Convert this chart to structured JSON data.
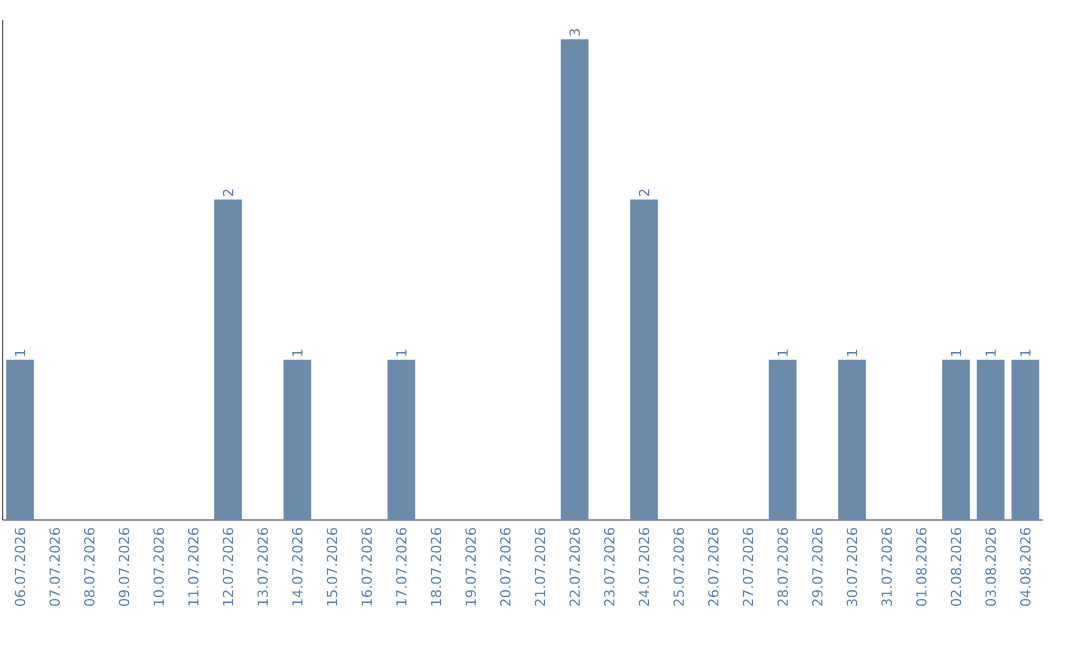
{
  "chart_data": {
    "type": "bar",
    "categories": [
      "06.07.2026",
      "07.07.2026",
      "08.07.2026",
      "09.07.2026",
      "10.07.2026",
      "11.07.2026",
      "12.07.2026",
      "13.07.2026",
      "14.07.2026",
      "15.07.2026",
      "16.07.2026",
      "17.07.2026",
      "18.07.2026",
      "19.07.2026",
      "20.07.2026",
      "21.07.2026",
      "22.07.2026",
      "23.07.2026",
      "24.07.2026",
      "25.07.2026",
      "26.07.2026",
      "27.07.2026",
      "28.07.2026",
      "29.07.2026",
      "30.07.2026",
      "31.07.2026",
      "01.08.2026",
      "02.08.2026",
      "03.08.2026",
      "04.08.2026"
    ],
    "values": [
      1,
      0,
      0,
      0,
      0,
      0,
      2,
      0,
      1,
      0,
      0,
      1,
      0,
      0,
      0,
      0,
      3,
      0,
      2,
      0,
      0,
      0,
      1,
      0,
      1,
      0,
      0,
      1,
      1,
      1
    ],
    "value_labels": [
      "1",
      null,
      null,
      null,
      null,
      null,
      "2",
      null,
      "1",
      null,
      null,
      "1",
      null,
      null,
      null,
      null,
      "3",
      null,
      "2",
      null,
      null,
      null,
      "1",
      null,
      "1",
      null,
      null,
      "1",
      "1",
      "1"
    ],
    "color": "#6b8cab"
  }
}
